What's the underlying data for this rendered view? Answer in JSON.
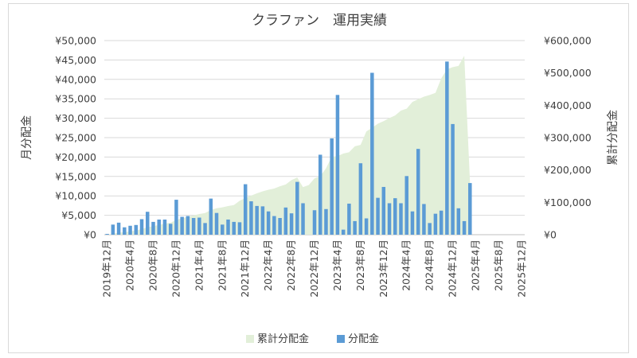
{
  "chart_data": {
    "type": "bar",
    "title": "クラファン　運用実績",
    "ylabel_left": "月分配金",
    "ylabel_right": "累計分配金",
    "ylim_left": [
      0,
      50000
    ],
    "ylim_right": [
      0,
      600000
    ],
    "yticks_left": [
      "¥0",
      "¥5,000",
      "¥10,000",
      "¥15,000",
      "¥20,000",
      "¥25,000",
      "¥30,000",
      "¥35,000",
      "¥40,000",
      "¥45,000",
      "¥50,000"
    ],
    "yticks_right": [
      "¥0",
      "¥100,000",
      "¥200,000",
      "¥300,000",
      "¥400,000",
      "¥500,000",
      "¥600,000"
    ],
    "x_tick_labels": [
      "2019年12月",
      "2020年4月",
      "2020年8月",
      "2020年12月",
      "2021年4月",
      "2021年8月",
      "2021年12月",
      "2022年4月",
      "2022年8月",
      "2022年12月",
      "2023年4月",
      "2023年8月",
      "2023年12月",
      "2024年4月",
      "2024年8月",
      "2024年12月",
      "2025年4月",
      "2025年8月",
      "2025年12月"
    ],
    "x_start": "2019年12月",
    "grid": true,
    "legend_position": "bottom",
    "series": [
      {
        "name": "累計分配金",
        "type": "area",
        "axis": "right",
        "color": "#e2efd9",
        "values": [
          200,
          2800,
          6200,
          8000,
          10300,
          12800,
          17100,
          23000,
          26300,
          30200,
          34100,
          36900,
          45900,
          50500,
          55300,
          59600,
          64000,
          67000,
          76300,
          81900,
          84500,
          88400,
          91700,
          104700,
          113300,
          120700,
          128000,
          134000,
          138800,
          142600,
          149600,
          155100,
          168700,
          176800,
          147000,
          153300,
          174000,
          180600,
          205400,
          241400,
          242700,
          250700,
          254900,
          273300,
          277500,
          319200,
          330600,
          342900,
          351000,
          360400,
          368500,
          383600,
          389500,
          410500,
          418500,
          426700,
          432000,
          438200,
          482800,
          511300,
          518000,
          521500,
          553000,
          160000
        ]
      },
      {
        "name": "分配金",
        "type": "bar",
        "axis": "left",
        "color": "#5b9bd5",
        "values": [
          200,
          2600,
          3100,
          1900,
          2300,
          2500,
          4000,
          5900,
          3300,
          3900,
          3900,
          2800,
          9000,
          4600,
          4800,
          4300,
          4400,
          3000,
          9300,
          5600,
          2600,
          3900,
          3300,
          3200,
          13000,
          8600,
          7400,
          7300,
          6000,
          4800,
          4300,
          7000,
          5500,
          13600,
          8100,
          0,
          6300,
          20600,
          6600,
          24800,
          36000,
          1300,
          8000,
          3500,
          18400,
          4200,
          41700,
          9500,
          12300,
          8100,
          9400,
          8100,
          15100,
          6000,
          22100,
          7900,
          3000,
          5400,
          6200,
          44600,
          28500,
          6800,
          3500,
          13300
        ]
      }
    ]
  }
}
